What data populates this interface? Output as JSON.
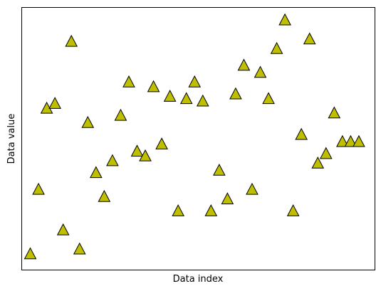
{
  "chart_data": {
    "type": "scatter",
    "title": "",
    "xlabel": "Data index",
    "ylabel": "Data value",
    "grid": false,
    "marker": "triangle-up",
    "marker_color": "#bfbf00",
    "marker_edge_color": "#000000",
    "x_ticks_visible": false,
    "y_ticks_visible": false,
    "xlim": [
      -1,
      42
    ],
    "ylim": [
      -0.05,
      1.05
    ],
    "x": [
      0,
      1,
      2,
      3,
      4,
      5,
      6,
      7,
      8,
      9,
      10,
      11,
      12,
      13,
      14,
      15,
      16,
      17,
      18,
      19,
      20,
      21,
      22,
      23,
      24,
      25,
      26,
      27,
      28,
      29,
      30,
      31,
      32,
      33,
      34,
      35,
      36,
      37,
      38,
      39,
      40
    ],
    "y": [
      0.02,
      0.29,
      0.63,
      0.65,
      0.12,
      0.91,
      0.04,
      0.57,
      0.36,
      0.26,
      0.41,
      0.6,
      0.74,
      0.45,
      0.43,
      0.72,
      0.48,
      0.68,
      0.2,
      0.67,
      0.74,
      0.66,
      0.2,
      0.37,
      0.25,
      0.69,
      0.81,
      0.29,
      0.78,
      0.67,
      0.88,
      1.0,
      0.2,
      0.52,
      0.92,
      0.4,
      0.44,
      0.61,
      0.49,
      0.49,
      0.49
    ]
  }
}
